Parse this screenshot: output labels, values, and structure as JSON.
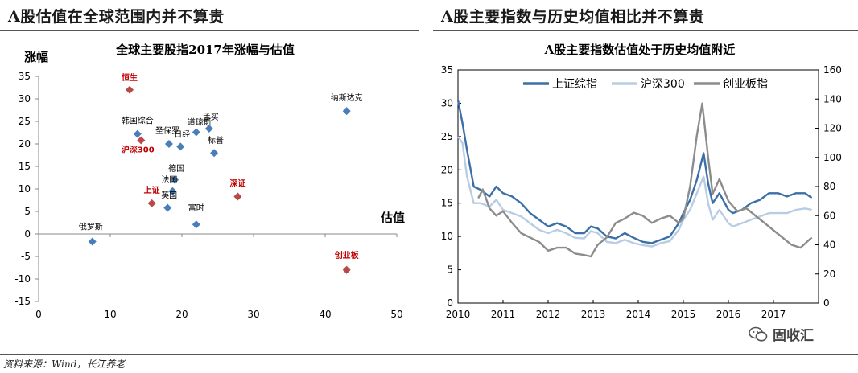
{
  "header": {
    "left_title": "A股估值在全球范围内并不算贵",
    "right_title": "A股主要指数与历史均值相比并不算贵"
  },
  "footer": {
    "source": "资料来源：Wind，长江养老",
    "watermark": "固收汇"
  },
  "colors": {
    "blue_marker": "#4a7ebb",
    "red_marker": "#b84a4a",
    "highlight_label": "#c00000",
    "series_sh": "#3b6fa8",
    "series_hs300": "#b8cde3",
    "series_cyb": "#8c8c8c"
  },
  "chart_data": [
    {
      "type": "scatter",
      "title": "全球主要股指2017年涨幅与估值",
      "ylabel": "涨幅",
      "xlabel": "估值",
      "xlim": [
        0,
        50
      ],
      "ylim": [
        -15,
        35
      ],
      "xticks": [
        0,
        10,
        20,
        30,
        40,
        50
      ],
      "yticks": [
        -15,
        -10,
        -5,
        0,
        5,
        10,
        15,
        20,
        25,
        30,
        35
      ],
      "grid": false,
      "points": [
        {
          "label": "恒生",
          "x": 12.7,
          "y": 32.0,
          "highlight": true
        },
        {
          "label": "纳斯达克",
          "x": 43.0,
          "y": 27.3,
          "highlight": false
        },
        {
          "label": "韩国综合",
          "x": 13.8,
          "y": 22.2,
          "highlight": false
        },
        {
          "label": "沪深300",
          "x": 14.3,
          "y": 20.8,
          "highlight": true
        },
        {
          "label": "圣保罗",
          "x": 18.2,
          "y": 20.0,
          "highlight": false
        },
        {
          "label": "日经",
          "x": 19.8,
          "y": 19.4,
          "highlight": false
        },
        {
          "label": "道琼斯",
          "x": 22.0,
          "y": 22.6,
          "highlight": false
        },
        {
          "label": "孟买",
          "x": 23.8,
          "y": 23.4,
          "highlight": false
        },
        {
          "label": "标普",
          "x": 24.5,
          "y": 18.0,
          "highlight": false
        },
        {
          "label": "德国",
          "x": 19.0,
          "y": 12.0,
          "highlight": false
        },
        {
          "label": "法国",
          "x": 18.7,
          "y": 9.5,
          "highlight": false
        },
        {
          "label": "上证",
          "x": 15.8,
          "y": 6.8,
          "highlight": true
        },
        {
          "label": "英国",
          "x": 18.0,
          "y": 5.8,
          "highlight": false
        },
        {
          "label": "富时",
          "x": 22.0,
          "y": 2.1,
          "highlight": false
        },
        {
          "label": "深证",
          "x": 27.8,
          "y": 8.3,
          "highlight": true
        },
        {
          "label": "俄罗斯",
          "x": 7.5,
          "y": -1.7,
          "highlight": false
        },
        {
          "label": "创业板",
          "x": 43.0,
          "y": -8.0,
          "highlight": true
        }
      ]
    },
    {
      "type": "line",
      "title": "A股主要指数估值处于历史均值附近",
      "x_range": [
        2010,
        2018
      ],
      "xticks": [
        2010,
        2011,
        2012,
        2013,
        2014,
        2015,
        2016,
        2017
      ],
      "ylim_left": [
        0,
        35
      ],
      "yticks_left": [
        0,
        5,
        10,
        15,
        20,
        25,
        30,
        35
      ],
      "ylim_right": [
        0,
        160
      ],
      "yticks_right": [
        0,
        20,
        40,
        60,
        80,
        100,
        120,
        140,
        160
      ],
      "legend_position": "top",
      "series": [
        {
          "name": "上证综指",
          "axis": "left",
          "x": [
            2010.0,
            2010.1,
            2010.2,
            2010.35,
            2010.5,
            2010.7,
            2010.85,
            2011.0,
            2011.2,
            2011.4,
            2011.6,
            2011.8,
            2012.0,
            2012.2,
            2012.4,
            2012.6,
            2012.8,
            2012.95,
            2013.1,
            2013.3,
            2013.5,
            2013.7,
            2013.9,
            2014.1,
            2014.3,
            2014.5,
            2014.7,
            2014.9,
            2015.0,
            2015.15,
            2015.3,
            2015.45,
            2015.55,
            2015.65,
            2015.8,
            2016.0,
            2016.1,
            2016.3,
            2016.5,
            2016.7,
            2016.9,
            2017.1,
            2017.3,
            2017.5,
            2017.7,
            2017.85
          ],
          "y": [
            30.5,
            27,
            23,
            17.5,
            17,
            16,
            17.5,
            16.5,
            16,
            15,
            13.5,
            12.5,
            11.5,
            12,
            11.5,
            10.5,
            10.5,
            11.5,
            11.2,
            10,
            9.7,
            10.5,
            9.8,
            9.2,
            9,
            9.5,
            10,
            12,
            13.5,
            15.5,
            18.5,
            22.5,
            18,
            15,
            16.5,
            14,
            13.5,
            14,
            15,
            15.5,
            16.5,
            16.5,
            16,
            16.5,
            16.5,
            15.8
          ]
        },
        {
          "name": "沪深300",
          "axis": "left",
          "x": [
            2010.0,
            2010.1,
            2010.2,
            2010.35,
            2010.5,
            2010.7,
            2010.85,
            2011.0,
            2011.2,
            2011.4,
            2011.6,
            2011.8,
            2012.0,
            2012.2,
            2012.4,
            2012.6,
            2012.8,
            2012.95,
            2013.1,
            2013.3,
            2013.5,
            2013.7,
            2013.9,
            2014.1,
            2014.3,
            2014.5,
            2014.7,
            2014.9,
            2015.0,
            2015.15,
            2015.3,
            2015.45,
            2015.55,
            2015.65,
            2015.8,
            2016.0,
            2016.1,
            2016.3,
            2016.5,
            2016.7,
            2016.9,
            2017.1,
            2017.3,
            2017.5,
            2017.7,
            2017.85
          ],
          "y": [
            25,
            24,
            19,
            15,
            15,
            14.5,
            15.5,
            14,
            13.5,
            13,
            12,
            11,
            10.5,
            11,
            10.5,
            9.8,
            9.7,
            10.8,
            10.5,
            9.2,
            9,
            9.5,
            9,
            8.7,
            8.5,
            9,
            9.3,
            11,
            12.5,
            14,
            16.5,
            19,
            15,
            12.5,
            14,
            12,
            11.5,
            12,
            12.5,
            13,
            13.5,
            13.5,
            13.5,
            14,
            14.2,
            14
          ]
        },
        {
          "name": "创业板指",
          "axis": "right",
          "x": [
            2010.45,
            2010.55,
            2010.7,
            2010.85,
            2011.0,
            2011.2,
            2011.4,
            2011.6,
            2011.8,
            2012.0,
            2012.2,
            2012.4,
            2012.6,
            2012.8,
            2012.95,
            2013.1,
            2013.3,
            2013.5,
            2013.7,
            2013.9,
            2014.1,
            2014.3,
            2014.5,
            2014.7,
            2014.9,
            2015.0,
            2015.15,
            2015.3,
            2015.42,
            2015.48,
            2015.55,
            2015.65,
            2015.8,
            2016.0,
            2016.2,
            2016.4,
            2016.6,
            2016.8,
            2017.0,
            2017.2,
            2017.4,
            2017.6,
            2017.85
          ],
          "y": [
            72,
            78,
            65,
            60,
            63,
            55,
            48,
            45,
            42,
            36,
            38,
            38,
            34,
            33,
            32,
            40,
            45,
            55,
            58,
            62,
            60,
            55,
            58,
            60,
            55,
            58,
            80,
            115,
            137,
            120,
            100,
            75,
            85,
            70,
            63,
            65,
            60,
            55,
            50,
            45,
            40,
            38,
            45
          ]
        }
      ]
    }
  ]
}
